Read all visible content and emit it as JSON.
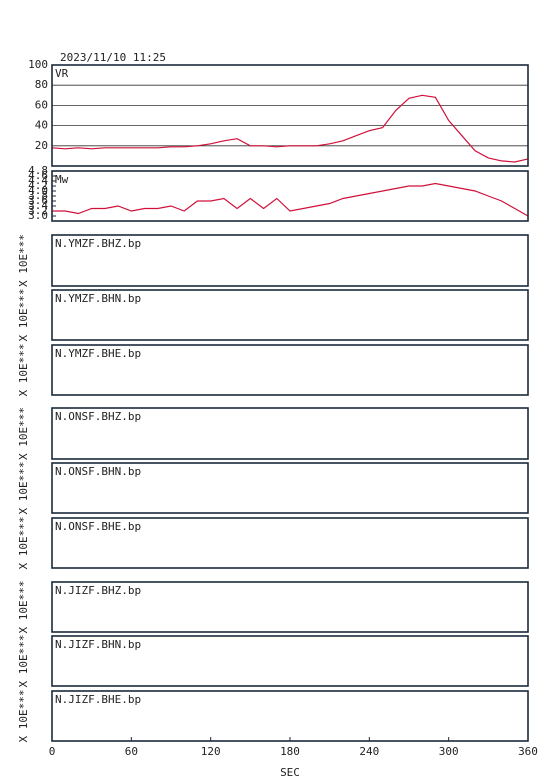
{
  "chart_data": [
    {
      "type": "line",
      "title": "2023/11/10 11:25",
      "label": "VR",
      "color": "#d0103a",
      "grid": true,
      "xlim": [
        0,
        360
      ],
      "ylim": [
        0,
        100
      ],
      "yticks": [
        20,
        40,
        60,
        80,
        100
      ],
      "x": [
        0,
        10,
        20,
        30,
        40,
        50,
        60,
        70,
        80,
        90,
        100,
        110,
        120,
        130,
        140,
        150,
        160,
        170,
        180,
        190,
        200,
        210,
        220,
        230,
        240,
        250,
        260,
        270,
        280,
        290,
        300,
        310,
        320,
        330,
        340,
        350,
        360
      ],
      "values": [
        18,
        17,
        18,
        17,
        18,
        18,
        18,
        18,
        18,
        19,
        19,
        20,
        22,
        25,
        27,
        20,
        20,
        19,
        20,
        20,
        20,
        22,
        25,
        30,
        35,
        38,
        55,
        67,
        70,
        68,
        45,
        30,
        15,
        8,
        5,
        4,
        7
      ]
    },
    {
      "type": "line",
      "label": "Mw",
      "color": "#d0103a",
      "grid": false,
      "xlim": [
        0,
        360
      ],
      "ylim": [
        2.8,
        4.8
      ],
      "yticks": [
        {
          "value": 3.0,
          "label": "3.0"
        },
        3.2,
        3.4,
        3.6,
        3.8,
        {
          "value": 4.0,
          "label": "4.0"
        },
        4.2,
        4.4,
        4.6,
        4.8
      ],
      "x": [
        0,
        10,
        20,
        30,
        40,
        50,
        60,
        70,
        80,
        90,
        100,
        110,
        120,
        130,
        140,
        150,
        160,
        170,
        180,
        190,
        200,
        210,
        220,
        230,
        240,
        250,
        260,
        270,
        280,
        290,
        300,
        310,
        320,
        330,
        340,
        350,
        360
      ],
      "values": [
        3.2,
        3.2,
        3.1,
        3.3,
        3.3,
        3.4,
        3.2,
        3.3,
        3.3,
        3.4,
        3.2,
        3.6,
        3.6,
        3.7,
        3.3,
        3.7,
        3.3,
        3.7,
        3.2,
        3.3,
        3.4,
        3.5,
        3.7,
        3.8,
        3.9,
        4.0,
        4.1,
        4.2,
        4.2,
        4.3,
        4.2,
        4.1,
        4.0,
        3.8,
        3.6,
        3.3,
        3.0
      ]
    },
    {
      "type": "empty",
      "label": "N.YMZF.BHZ.bp",
      "ylabel": "X 10E***"
    },
    {
      "type": "empty",
      "label": "N.YMZF.BHN.bp",
      "ylabel": "X 10E***"
    },
    {
      "type": "empty",
      "label": "N.YMZF.BHE.bp",
      "ylabel": "X 10E***"
    },
    {
      "type": "empty",
      "label": "N.ONSF.BHZ.bp",
      "ylabel": "X 10E***"
    },
    {
      "type": "empty",
      "label": "N.ONSF.BHN.bp",
      "ylabel": "X 10E***"
    },
    {
      "type": "empty",
      "label": "N.ONSF.BHE.bp",
      "ylabel": "X 10E***"
    },
    {
      "type": "empty",
      "label": "N.JIZF.BHZ.bp",
      "ylabel": "X 10E***"
    },
    {
      "type": "empty",
      "label": "N.JIZF.BHN.bp",
      "ylabel": "X 10E***"
    },
    {
      "type": "empty",
      "label": "N.JIZF.BHE.bp",
      "ylabel": "X 10E***",
      "xlim": [
        0,
        360
      ],
      "xticks": [
        0,
        60,
        120,
        180,
        240,
        300,
        360
      ],
      "xlabel": "SEC"
    }
  ]
}
